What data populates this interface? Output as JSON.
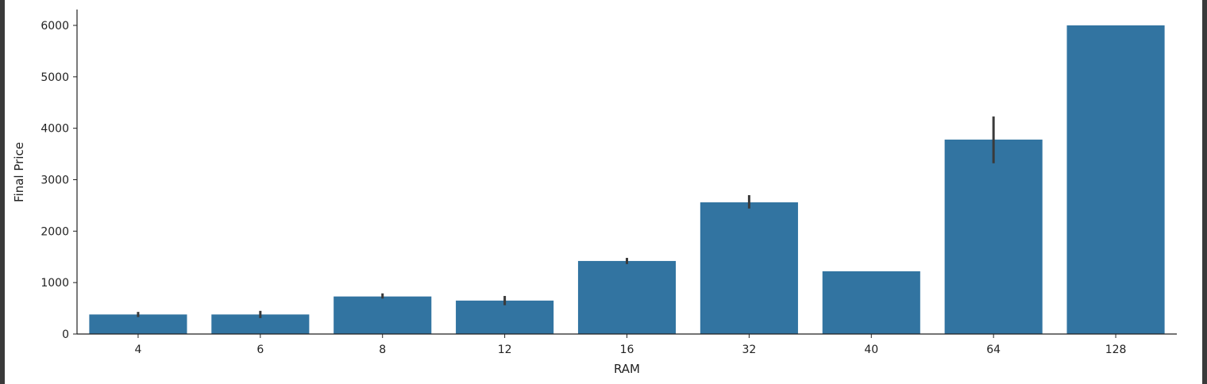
{
  "chart_data": {
    "type": "bar",
    "xlabel": "RAM",
    "ylabel": "Final Price",
    "categories": [
      "4",
      "6",
      "8",
      "12",
      "16",
      "32",
      "40",
      "64",
      "128"
    ],
    "values": [
      380,
      380,
      730,
      650,
      1420,
      2560,
      1220,
      3780,
      6000
    ],
    "error_bars": [
      [
        330,
        430
      ],
      [
        310,
        450
      ],
      [
        690,
        790
      ],
      [
        560,
        740
      ],
      [
        1360,
        1480
      ],
      [
        2440,
        2700
      ],
      null,
      [
        3320,
        4230
      ],
      null
    ],
    "ylim": [
      0,
      6300
    ],
    "yticks": [
      0,
      1000,
      2000,
      3000,
      4000,
      5000,
      6000
    ],
    "grid": false,
    "legend": "none"
  },
  "colors": {
    "bar": "#3274a1",
    "error_bar": "#3a3a3a",
    "axis": "#222222",
    "frame": "#3a3a3a"
  }
}
